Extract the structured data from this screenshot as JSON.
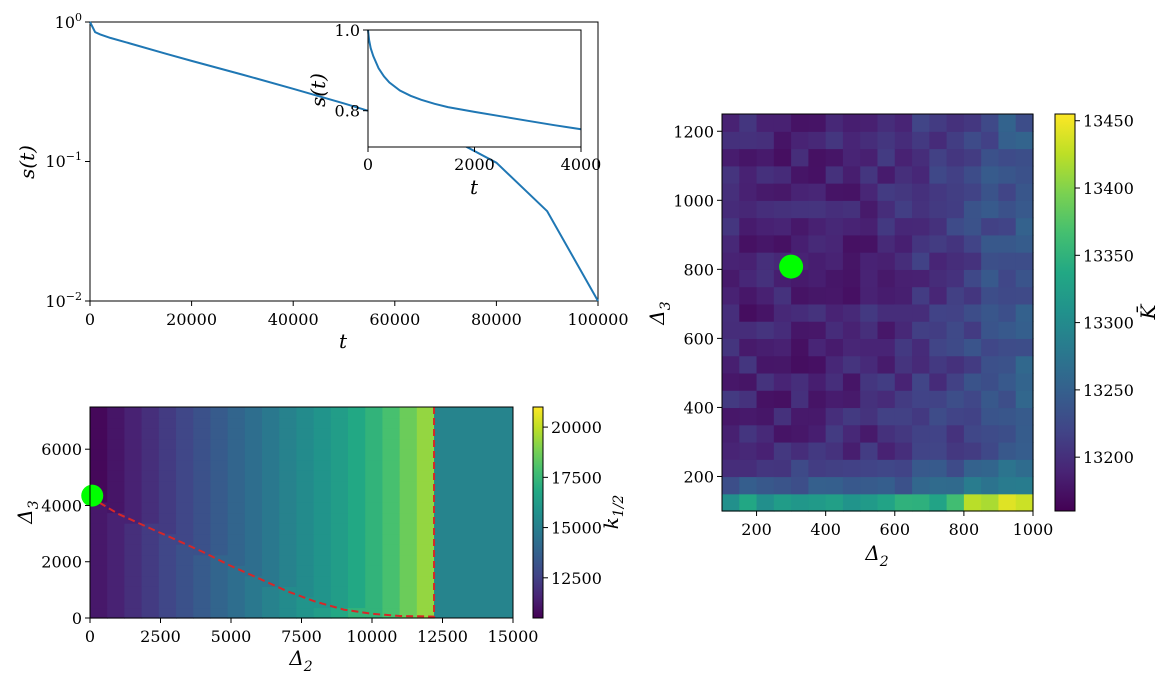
{
  "chart_data": [
    {
      "id": "main",
      "type": "line",
      "xlabel": "t",
      "ylabel": "s(t)",
      "xlim": [
        0,
        100000
      ],
      "ylim": [
        0.01,
        1
      ],
      "yscale": "log",
      "xticks": [
        "0",
        "20000",
        "40000",
        "60000",
        "80000",
        "100000"
      ],
      "yticks": [
        "10^0",
        "10^-1",
        "10^-2"
      ],
      "series": [
        {
          "color": "#1f77b4",
          "x": [
            0,
            1000,
            2000,
            4000,
            8000,
            15000,
            20000,
            30000,
            40000,
            50000,
            60000,
            70000,
            80000,
            90000,
            100000
          ],
          "y": [
            1.0,
            0.847,
            0.815,
            0.769,
            0.7,
            0.592,
            0.526,
            0.42,
            0.332,
            0.261,
            0.202,
            0.153,
            0.098,
            0.044,
            0.01
          ]
        }
      ]
    },
    {
      "id": "inset",
      "type": "line",
      "xlabel": "t",
      "ylabel": "s(t)",
      "xlim": [
        0,
        4000
      ],
      "ylim": [
        0.71,
        1.0
      ],
      "xticks": [
        "0",
        "2000",
        "4000"
      ],
      "yticks": [
        "1.0",
        "0.8"
      ],
      "series": [
        {
          "color": "#1f77b4",
          "x": [
            0,
            20,
            50,
            100,
            200,
            300,
            400,
            600,
            800,
            1000,
            1250,
            1500,
            2000,
            2500,
            3000,
            3500,
            4000
          ],
          "y": [
            1.0,
            0.975,
            0.955,
            0.935,
            0.905,
            0.885,
            0.87,
            0.85,
            0.837,
            0.827,
            0.817,
            0.809,
            0.797,
            0.786,
            0.775,
            0.764,
            0.754
          ]
        }
      ]
    },
    {
      "id": "heatmap-left",
      "type": "heatmap",
      "xlabel": "Δ2",
      "ylabel": "Δ3",
      "xlim": [
        0,
        15000
      ],
      "ylim": [
        0,
        7500
      ],
      "xticks": [
        "0",
        "2500",
        "5000",
        "7500",
        "10000",
        "12500",
        "15000"
      ],
      "yticks": [
        "0",
        "2000",
        "4000",
        "6000"
      ],
      "colorbar_label": "k1/2",
      "colorbar_range": [
        10500,
        21000
      ],
      "colorbar_ticks": [
        "12500",
        "15000",
        "17500",
        "20000"
      ],
      "column_values": [
        10700,
        11100,
        11500,
        11900,
        12300,
        12700,
        13100,
        13500,
        13900,
        14300,
        14700,
        15100,
        15500,
        15900,
        16300,
        16800,
        17300,
        17900,
        18600,
        19300
      ],
      "lower_region_column_values": [
        11200,
        11500,
        11900,
        12300,
        12700,
        13100,
        13500,
        13900,
        14300,
        14700,
        15100,
        15500,
        15900,
        16300,
        16800,
        17300,
        17900,
        18600,
        19300,
        19800
      ],
      "right_region_value": 15200,
      "boundary_curve": {
        "color": "#d62728",
        "x": [
          0,
          1000,
          2000,
          3000,
          4000,
          5000,
          6000,
          7000,
          8000,
          9000,
          10000,
          11000,
          12200
        ],
        "y": [
          4300,
          3700,
          3250,
          2800,
          2350,
          1850,
          1400,
          950,
          580,
          300,
          150,
          70,
          50
        ]
      },
      "vertical_line_x": 12200,
      "marker": {
        "x": 80,
        "y": 4350,
        "color": "#00ff00"
      }
    },
    {
      "id": "heatmap-right",
      "type": "heatmap",
      "xlabel": "Δ2",
      "ylabel": "Δ3",
      "xlim": [
        100,
        1000
      ],
      "ylim": [
        100,
        1250
      ],
      "xticks": [
        "200",
        "400",
        "600",
        "800",
        "1000"
      ],
      "yticks": [
        "200",
        "400",
        "600",
        "800",
        "1000",
        "1200"
      ],
      "colorbar_label": "K̄",
      "colorbar_range": [
        13160,
        13455
      ],
      "colorbar_ticks": [
        "13200",
        "13250",
        "13300",
        "13350",
        "13400",
        "13450"
      ],
      "marker": {
        "x": 300,
        "y": 808,
        "color": "#00ff00"
      }
    }
  ]
}
